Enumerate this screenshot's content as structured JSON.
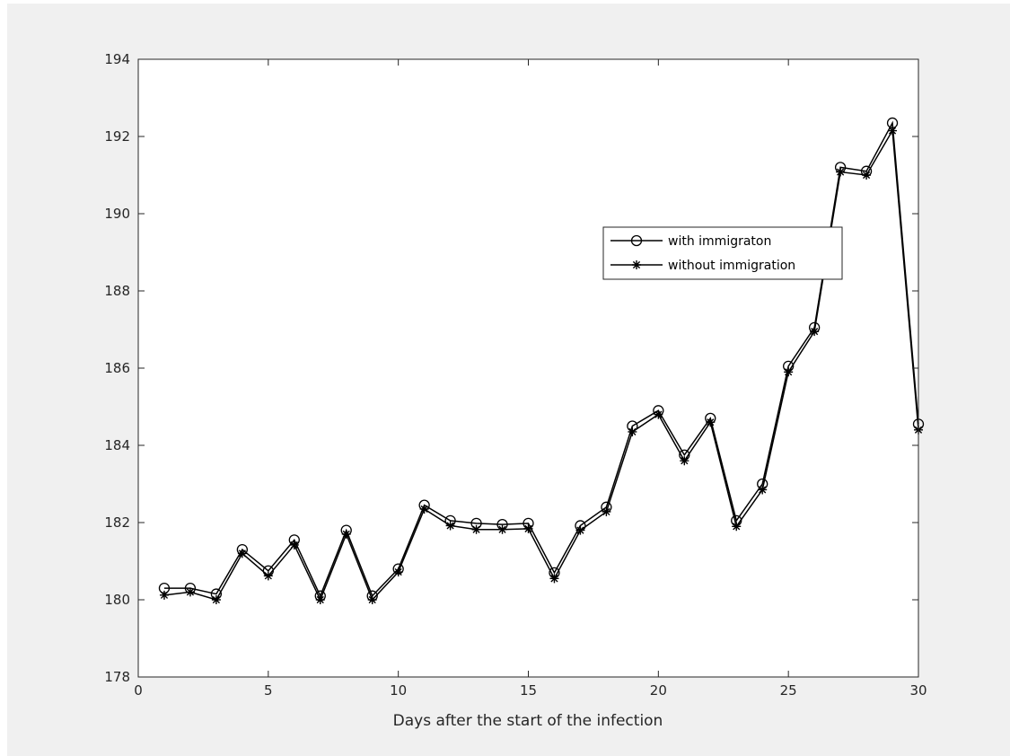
{
  "chart_data": {
    "type": "line",
    "title": "",
    "xlabel": "Days after the start of the infection",
    "ylabel": "",
    "xlim": [
      0,
      30
    ],
    "ylim": [
      178,
      194
    ],
    "xticks": [
      "0",
      "5",
      "10",
      "15",
      "20",
      "25",
      "30"
    ],
    "yticks": [
      "178",
      "180",
      "182",
      "184",
      "186",
      "188",
      "190",
      "192",
      "194"
    ],
    "grid": false,
    "legend_position": "center-right",
    "x": [
      1,
      2,
      3,
      4,
      5,
      6,
      7,
      8,
      9,
      10,
      11,
      12,
      13,
      14,
      15,
      16,
      17,
      18,
      19,
      20,
      21,
      22,
      23,
      24,
      25,
      26,
      27,
      28,
      29,
      30
    ],
    "series": [
      {
        "name": "with immigraton",
        "marker": "circle",
        "color": "#000000",
        "values": [
          180.3,
          180.3,
          180.15,
          181.3,
          180.75,
          181.55,
          180.1,
          181.8,
          180.1,
          180.8,
          182.45,
          182.05,
          181.98,
          181.95,
          181.98,
          180.7,
          181.92,
          182.4,
          184.5,
          184.9,
          183.75,
          184.7,
          182.05,
          183.0,
          186.05,
          187.05,
          191.2,
          191.1,
          192.35,
          184.55
        ]
      },
      {
        "name": "without immigration",
        "marker": "asterisk",
        "color": "#000000",
        "values": [
          180.12,
          180.2,
          180.0,
          181.2,
          180.62,
          181.42,
          180.0,
          181.7,
          180.0,
          180.72,
          182.35,
          181.92,
          181.82,
          181.82,
          181.84,
          180.55,
          181.8,
          182.28,
          184.35,
          184.8,
          183.6,
          184.6,
          181.9,
          182.85,
          185.9,
          186.95,
          191.08,
          191.0,
          192.15,
          184.4
        ]
      }
    ]
  }
}
